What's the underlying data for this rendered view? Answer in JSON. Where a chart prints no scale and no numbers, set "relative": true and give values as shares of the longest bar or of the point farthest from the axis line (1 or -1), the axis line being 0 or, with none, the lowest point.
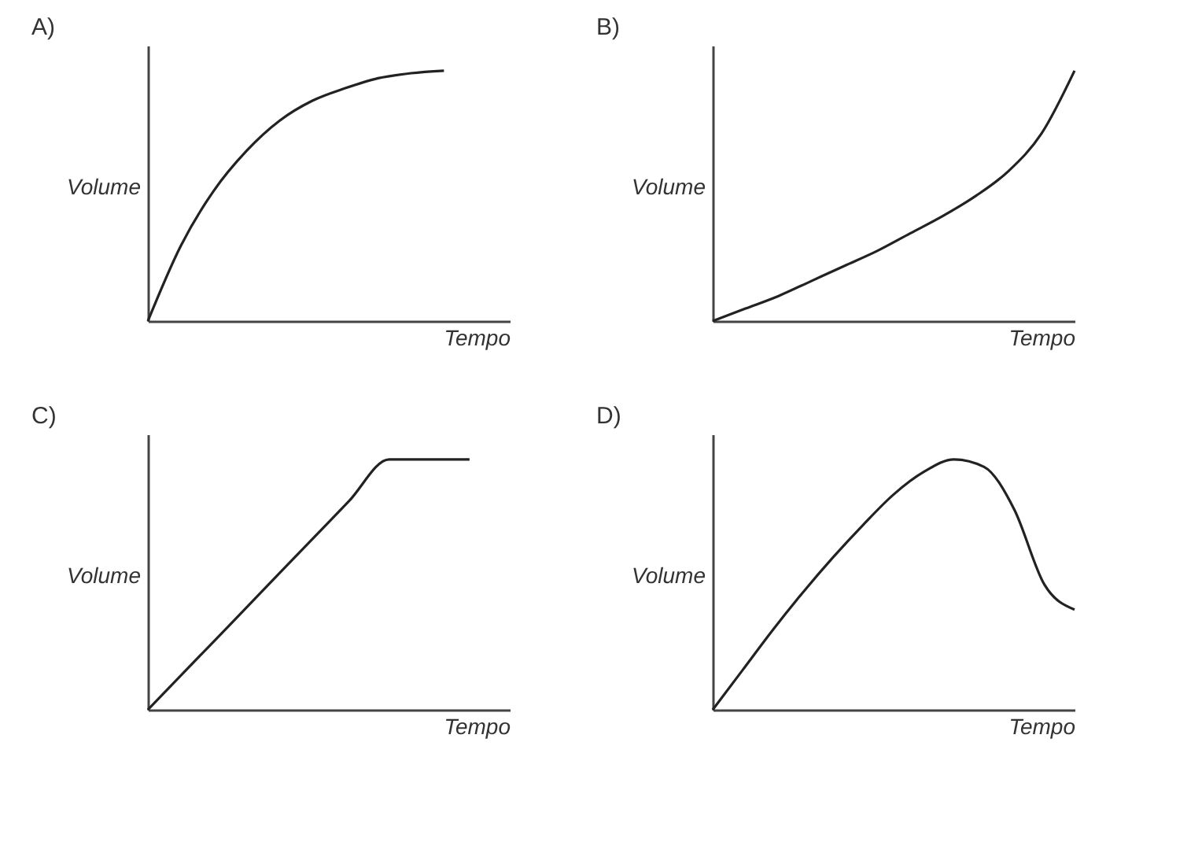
{
  "chart_data": [
    {
      "type": "line",
      "title": "A)",
      "xlabel": "Tempo",
      "ylabel": "Volume",
      "relative": true,
      "tick_labels": false,
      "grid": false,
      "legend": false,
      "categories": [
        null,
        null,
        null,
        null,
        null,
        null,
        null,
        null,
        null,
        null,
        null,
        null
      ],
      "series": [
        {
          "color": "#222222",
          "values": [
            0,
            0.3,
            0.52,
            0.68,
            0.8,
            0.88,
            0.93,
            0.97,
            0.99,
            1,
            null,
            null
          ]
        }
      ]
    },
    {
      "type": "line",
      "title": "B)",
      "xlabel": "Tempo",
      "ylabel": "Volume",
      "relative": true,
      "tick_labels": false,
      "grid": false,
      "legend": false,
      "categories": [
        null,
        null,
        null,
        null,
        null,
        null,
        null,
        null,
        null,
        null,
        null,
        null
      ],
      "series": [
        {
          "color": "#222222",
          "values": [
            0,
            0.05,
            0.1,
            0.16,
            0.22,
            0.28,
            0.35,
            0.42,
            0.5,
            0.6,
            0.75,
            1
          ]
        }
      ]
    },
    {
      "type": "line",
      "title": "C)",
      "xlabel": "Tempo",
      "ylabel": "Volume",
      "relative": true,
      "tick_labels": false,
      "grid": false,
      "legend": false,
      "categories": [
        null,
        null,
        null,
        null,
        null,
        null,
        null,
        null,
        null,
        null
      ],
      "series": [
        {
          "color": "#222222",
          "values": [
            0,
            0.167,
            0.333,
            0.5,
            0.667,
            0.833,
            1,
            1,
            1,
            null
          ]
        }
      ]
    },
    {
      "type": "line",
      "title": "D)",
      "xlabel": "Tempo",
      "ylabel": "Volume",
      "relative": true,
      "tick_labels": false,
      "grid": false,
      "legend": false,
      "categories": [
        null,
        null,
        null,
        null,
        null,
        null,
        null,
        null,
        null,
        null,
        null,
        null,
        null
      ],
      "series": [
        {
          "color": "#222222",
          "values": [
            0,
            0.16,
            0.32,
            0.47,
            0.61,
            0.74,
            0.86,
            0.95,
            1,
            0.97,
            0.8,
            0.5,
            0.4
          ]
        }
      ]
    }
  ]
}
